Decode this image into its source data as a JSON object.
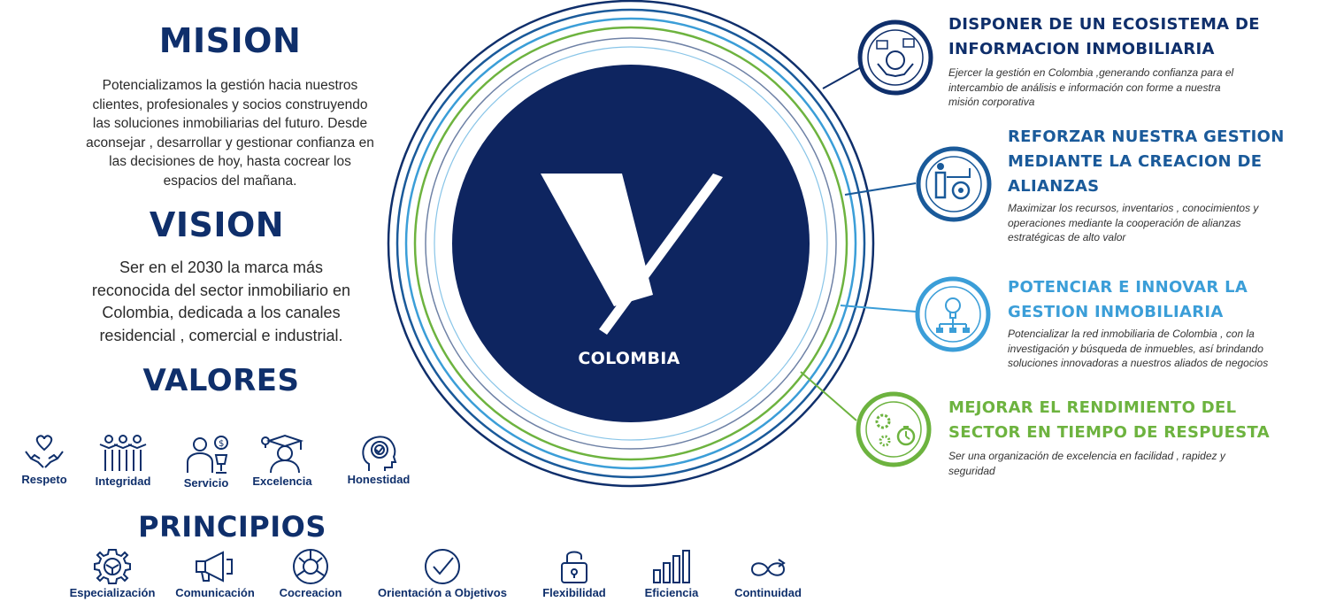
{
  "mision": {
    "title": "MISION",
    "lines": [
      "Potencializamos la gestión hacia nuestros",
      "clientes, profesionales y socios construyendo",
      "las soluciones inmobiliarias del futuro.  Desde",
      "aconsejar , desarrollar  y gestionar confianza en",
      "las decisiones de hoy, hasta cocrear los",
      "espacios del mañana."
    ]
  },
  "vision": {
    "title": "VISION",
    "lines": [
      "Ser en el  2030 la marca más",
      "reconocida del sector inmobiliario en",
      "Colombia,  dedicada a los canales",
      "residencial , comercial e industrial."
    ]
  },
  "valores": {
    "title": "VALORES",
    "items": [
      {
        "label": "Respeto",
        "icon": "hands-heart-icon"
      },
      {
        "label": "Integridad",
        "icon": "team-icon"
      },
      {
        "label": "Servicio",
        "icon": "service-icon"
      },
      {
        "label": "Excelencia",
        "icon": "graduate-icon"
      },
      {
        "label": "Honestidad",
        "icon": "head-check-icon"
      }
    ]
  },
  "principios": {
    "title": "PRINCIPIOS",
    "items": [
      {
        "label": "Especialización",
        "icon": "gear-icon"
      },
      {
        "label": "Comunicación",
        "icon": "megaphone-icon"
      },
      {
        "label": "Cocreacion",
        "icon": "cocreation-icon"
      },
      {
        "label": "Orientación a Objetivos",
        "icon": "checkmark-icon"
      },
      {
        "label": "Flexibilidad",
        "icon": "lock-icon"
      },
      {
        "label": "Eficiencia",
        "icon": "bars-icon"
      },
      {
        "label": "Continuidad",
        "icon": "loop-icon"
      }
    ]
  },
  "logo": {
    "text": "COLOMBIA",
    "color": "#0e2560"
  },
  "objectives": [
    {
      "title_lines": [
        "DISPONER DE UN ECOSISTEMA DE",
        "INFORMACION INMOBILIARIA"
      ],
      "desc_lines": [
        "Ejercer la gestión en Colombia ,generando confianza para el",
        "intercambio de análisis e información con forme  a nuestra",
        "misión corporativa"
      ],
      "color": "#0f2f6b",
      "icon": "globe-hands-icon"
    },
    {
      "title_lines": [
        "REFORZAR NUESTRA GESTION",
        "MEDIANTE LA CREACION DE",
        "ALIANZAS"
      ],
      "desc_lines": [
        "Maximizar los recursos, inventarios , conocimientos y",
        "operaciones  mediante la cooperación de alianzas",
        "estratégicas de alto valor"
      ],
      "color": "#1a5a9a",
      "icon": "presenter-gear-icon"
    },
    {
      "title_lines": [
        "POTENCIAR E INNOVAR LA",
        "GESTION INMOBILIARIA"
      ],
      "desc_lines": [
        "Potencializar la red inmobiliaria de Colombia , con la",
        "investigación y búsqueda de inmuebles,  así brindando",
        "soluciones innovadoras a nuestros aliados de negocios"
      ],
      "color": "#3b9ed8",
      "icon": "lightbulb-network-icon"
    },
    {
      "title_lines": [
        "MEJORAR EL RENDIMIENTO DEL",
        "SECTOR EN TIEMPO DE RESPUESTA"
      ],
      "desc_lines": [
        "Ser una organización de excelencia en facilidad , rapidez y",
        "seguridad"
      ],
      "color": "#6db33f",
      "icon": "gears-clock-icon"
    }
  ]
}
